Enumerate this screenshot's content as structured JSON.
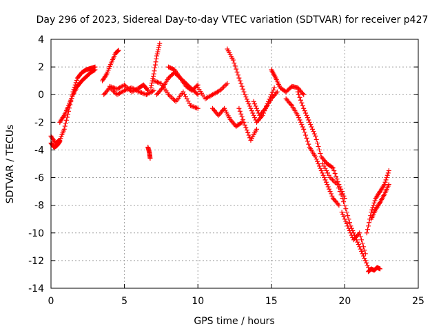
{
  "chart_data": {
    "type": "scatter",
    "title": "Day 296 of 2023, Sidereal Day-to-day VTEC variation (SDTVAR) for receiver p427",
    "xlabel": "GPS time / hours",
    "ylabel": "SDTVAR / TECUs",
    "xlim": [
      0,
      25
    ],
    "ylim": [
      -14,
      4
    ],
    "xticks": [
      0,
      5,
      10,
      15,
      20,
      25
    ],
    "yticks": [
      -14,
      -12,
      -10,
      -8,
      -6,
      -4,
      -2,
      0,
      2,
      4
    ],
    "xtick_labels": [
      "0",
      "5",
      "10",
      "15",
      "20",
      "25"
    ],
    "ytick_labels": [
      "-14",
      "-12",
      "-10",
      "-8",
      "-6",
      "-4",
      "-2",
      "0",
      "2",
      "4"
    ],
    "grid": true,
    "marker": "+",
    "color": "#ff0000",
    "series": [
      {
        "name": "p427",
        "x": [
          0.0,
          0.3,
          0.6,
          0.9,
          1.2,
          1.5,
          1.8,
          2.1,
          2.4,
          2.7,
          3.0
        ],
        "y": [
          -3.0,
          -3.5,
          -3.3,
          -2.5,
          -1.2,
          0.2,
          1.2,
          1.6,
          1.8,
          1.9,
          2.0
        ]
      },
      {
        "name": "p427",
        "x": [
          0.6,
          0.9,
          1.2,
          1.5,
          1.8,
          2.1,
          2.4,
          2.7,
          3.0
        ],
        "y": [
          -2.0,
          -1.5,
          -0.8,
          0.0,
          0.6,
          1.0,
          1.3,
          1.6,
          1.8
        ]
      },
      {
        "name": "p427",
        "x": [
          0.0,
          0.2,
          0.4,
          0.6
        ],
        "y": [
          -3.5,
          -3.8,
          -3.7,
          -3.4
        ]
      },
      {
        "name": "p427",
        "x": [
          3.5,
          3.8,
          4.1,
          4.4,
          4.6
        ],
        "y": [
          1.0,
          1.5,
          2.3,
          3.0,
          3.2
        ]
      },
      {
        "name": "p427",
        "x": [
          3.6,
          4.0,
          4.5,
          5.0,
          5.5,
          6.0,
          6.5,
          7.0
        ],
        "y": [
          0.0,
          0.5,
          0.0,
          0.3,
          0.5,
          0.2,
          0.0,
          0.3
        ]
      },
      {
        "name": "p427",
        "x": [
          4.0,
          4.5,
          5.0,
          5.5,
          6.0,
          6.3,
          6.6
        ],
        "y": [
          0.6,
          0.4,
          0.7,
          0.2,
          0.5,
          0.7,
          0.3
        ]
      },
      {
        "name": "p427",
        "x": [
          6.6,
          6.7,
          6.75
        ],
        "y": [
          -3.8,
          -4.2,
          -4.6
        ]
      },
      {
        "name": "p427",
        "x": [
          6.8,
          7.0,
          7.2,
          7.4
        ],
        "y": [
          0.5,
          1.5,
          2.8,
          3.7
        ]
      },
      {
        "name": "p427",
        "x": [
          7.0,
          7.5,
          8.0,
          8.5,
          9.0,
          9.5,
          10.0
        ],
        "y": [
          1.0,
          0.8,
          0.0,
          -0.5,
          0.2,
          -0.8,
          -1.0
        ]
      },
      {
        "name": "p427",
        "x": [
          7.2,
          7.6,
          8.0,
          8.4,
          8.8,
          9.2,
          9.6,
          10.0
        ],
        "y": [
          0.0,
          0.5,
          1.2,
          1.6,
          1.2,
          0.8,
          0.4,
          0.0
        ]
      },
      {
        "name": "p427",
        "x": [
          8.0,
          8.4,
          8.8,
          9.2,
          9.6,
          10.0
        ],
        "y": [
          2.0,
          1.8,
          1.2,
          0.6,
          0.3,
          0.7
        ]
      },
      {
        "name": "p427",
        "x": [
          10.0,
          10.5,
          11.0,
          11.5,
          12.0
        ],
        "y": [
          0.5,
          -0.3,
          0.0,
          0.3,
          0.8
        ]
      },
      {
        "name": "p427",
        "x": [
          11.0,
          11.4,
          11.8,
          12.2,
          12.6,
          13.0
        ],
        "y": [
          -1.0,
          -1.5,
          -1.0,
          -1.8,
          -2.3,
          -2.0
        ]
      },
      {
        "name": "p427",
        "x": [
          12.0,
          12.4,
          12.8,
          13.2,
          13.6,
          14.0,
          14.4,
          14.8,
          15.2
        ],
        "y": [
          3.3,
          2.5,
          1.2,
          0.0,
          -1.0,
          -2.0,
          -1.5,
          -0.5,
          0.5
        ]
      },
      {
        "name": "p427",
        "x": [
          12.8,
          13.2,
          13.6,
          14.0
        ],
        "y": [
          -1.0,
          -2.2,
          -3.3,
          -2.5
        ]
      },
      {
        "name": "p427",
        "x": [
          13.8,
          14.2,
          14.6,
          15.0,
          15.4
        ],
        "y": [
          -0.5,
          -1.5,
          -1.0,
          -0.3,
          0.2
        ]
      },
      {
        "name": "p427",
        "x": [
          15.0,
          15.3,
          15.6,
          16.0,
          16.4,
          16.8,
          17.2
        ],
        "y": [
          1.8,
          1.2,
          0.5,
          0.2,
          0.6,
          0.5,
          0.0
        ]
      },
      {
        "name": "p427",
        "x": [
          16.0,
          16.4,
          16.8,
          17.2,
          17.6,
          18.0,
          18.4,
          18.8,
          19.2,
          19.6
        ],
        "y": [
          -0.3,
          -0.8,
          -1.5,
          -2.5,
          -3.8,
          -4.5,
          -5.5,
          -6.5,
          -7.5,
          -8.0
        ]
      },
      {
        "name": "p427",
        "x": [
          16.8,
          17.2,
          17.6,
          18.0,
          18.4,
          18.8,
          19.2,
          19.6,
          20.0
        ],
        "y": [
          0.2,
          -1.0,
          -2.0,
          -3.0,
          -4.5,
          -5.0,
          -5.3,
          -6.5,
          -7.5
        ]
      },
      {
        "name": "p427",
        "x": [
          18.5,
          19.0,
          19.5,
          20.0,
          20.4,
          20.8,
          21.2,
          21.6
        ],
        "y": [
          -5.0,
          -6.0,
          -6.5,
          -8.0,
          -9.5,
          -10.5,
          -11.5,
          -12.5
        ]
      },
      {
        "name": "p427",
        "x": [
          19.8,
          20.2,
          20.6,
          21.0,
          21.4
        ],
        "y": [
          -8.5,
          -9.5,
          -10.5,
          -10.0,
          -11.5
        ]
      },
      {
        "name": "p427",
        "x": [
          21.6,
          21.8,
          22.0,
          22.2,
          22.4
        ],
        "y": [
          -12.8,
          -12.6,
          -12.7,
          -12.5,
          -12.6
        ]
      },
      {
        "name": "p427",
        "x": [
          21.5,
          21.8,
          22.1,
          22.4,
          22.7,
          23.0
        ],
        "y": [
          -10.0,
          -8.5,
          -7.5,
          -7.0,
          -6.5,
          -5.5
        ]
      },
      {
        "name": "p427",
        "x": [
          21.8,
          22.1,
          22.4,
          22.7,
          23.0
        ],
        "y": [
          -9.0,
          -8.3,
          -7.8,
          -7.2,
          -6.5
        ]
      }
    ]
  }
}
